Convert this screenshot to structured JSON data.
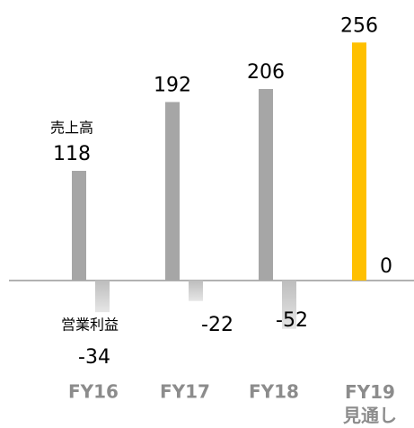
{
  "chart_data": {
    "type": "bar",
    "categories": [
      "FY16",
      "FY17",
      "FY18",
      "FY19\n見通し"
    ],
    "series": [
      {
        "name": "売上高",
        "color": "#a6a6a6",
        "colors": [
          "#a6a6a6",
          "#a6a6a6",
          "#a6a6a6",
          "#ffc000"
        ],
        "values": [
          118,
          192,
          206,
          256
        ]
      },
      {
        "name": "営業利益",
        "color": "#cccccc",
        "values": [
          -34,
          -22,
          -52,
          0
        ]
      }
    ],
    "ylim": [
      -60,
      270
    ]
  }
}
